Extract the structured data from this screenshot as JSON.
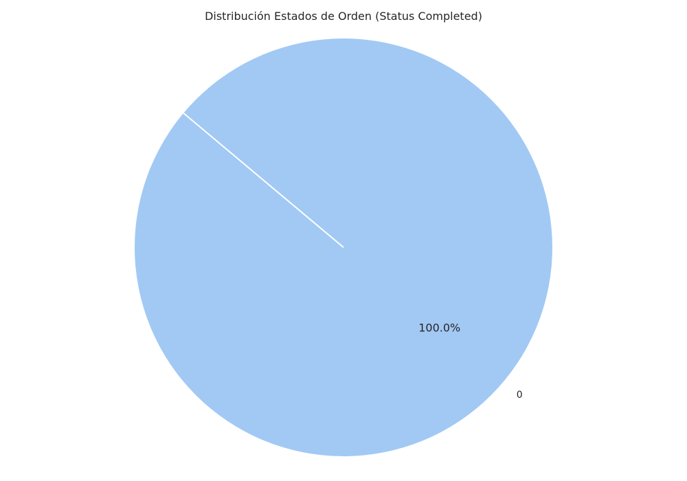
{
  "chart_data": {
    "type": "pie",
    "title": "Distribución Estados de Orden (Status Completed)",
    "categories": [
      "0"
    ],
    "values": [
      100.0
    ],
    "value_labels": [
      "100.0%"
    ],
    "colors": [
      "#a1c9f4"
    ],
    "legend": "none"
  }
}
